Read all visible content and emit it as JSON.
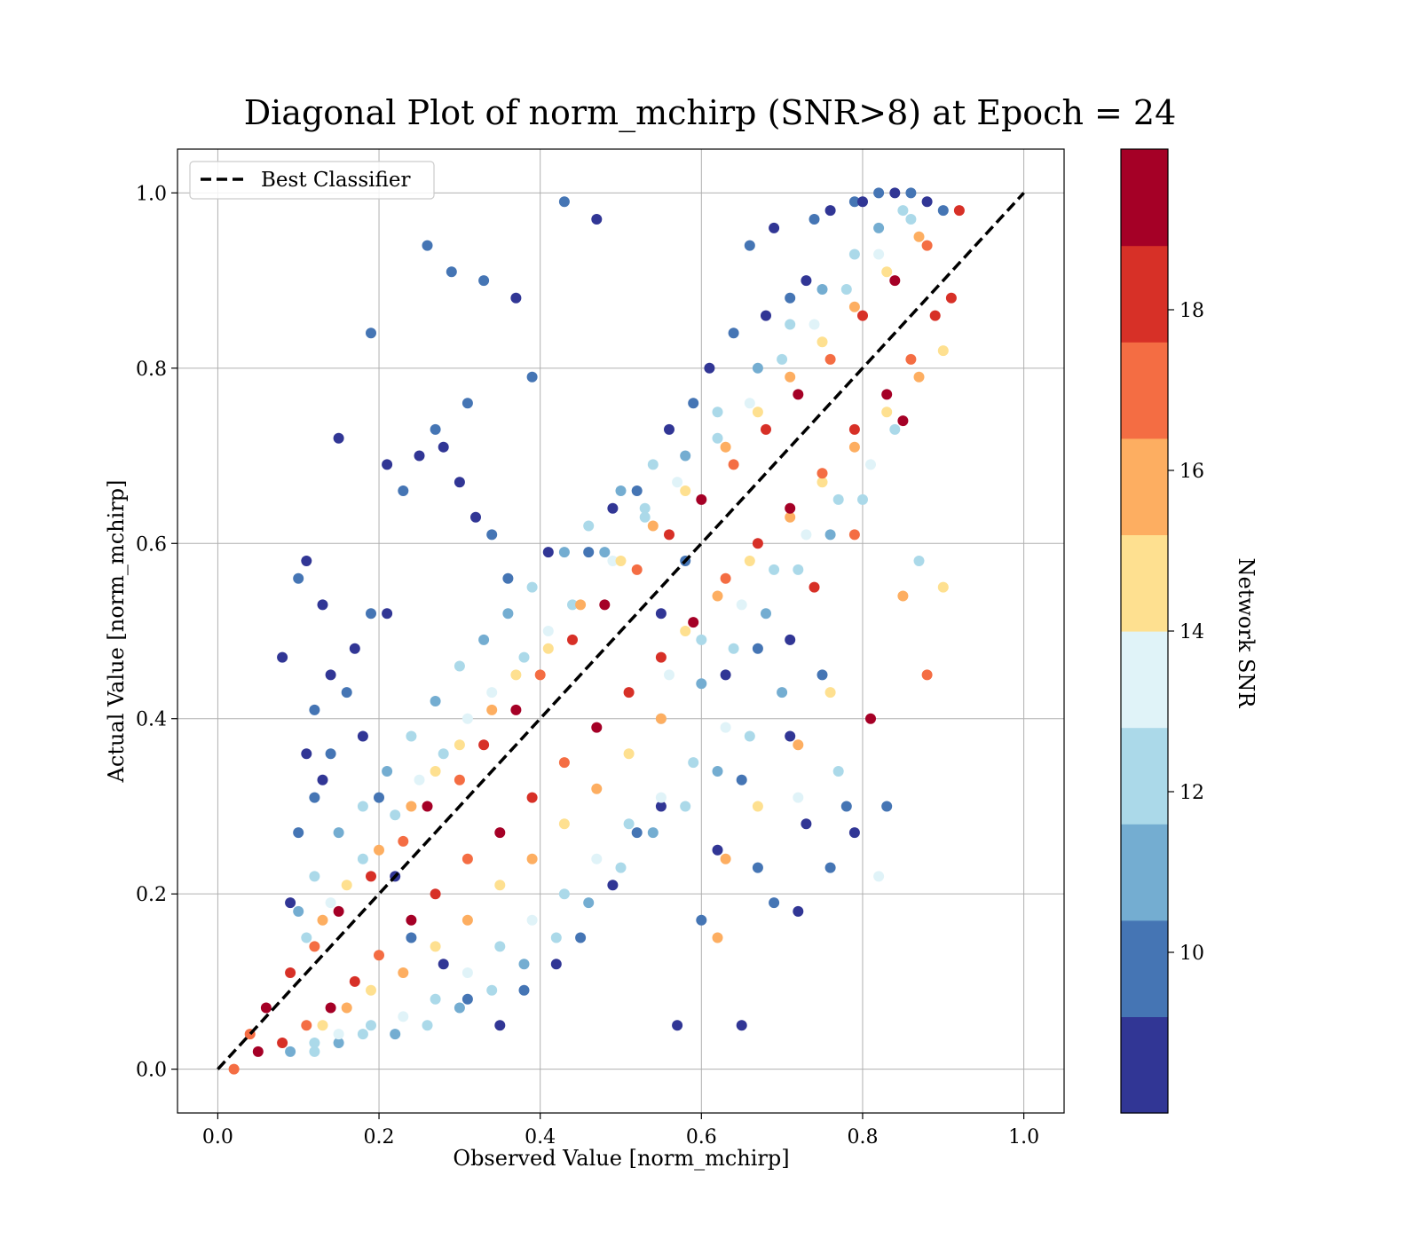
{
  "chart_data": {
    "type": "scatter",
    "title": "Diagonal Plot of norm_mchirp (SNR>8) at Epoch = 24",
    "xlabel": "Observed Value [norm_mchirp]",
    "ylabel": "Actual Value [norm_mchirp]",
    "xlim": [
      -0.05,
      1.05
    ],
    "ylim": [
      -0.05,
      1.05
    ],
    "x_ticks": [
      "0.0",
      "0.2",
      "0.4",
      "0.6",
      "0.8",
      "1.0"
    ],
    "y_ticks": [
      "0.0",
      "0.2",
      "0.4",
      "0.6",
      "0.8",
      "1.0"
    ],
    "grid": true,
    "legend": {
      "position": "upper-left",
      "entries": [
        "Best Classifier"
      ]
    },
    "reference_line": {
      "name": "Best Classifier",
      "x": [
        0.0,
        1.0
      ],
      "y": [
        0.0,
        1.0
      ],
      "style": "dashed",
      "color": "#000000"
    },
    "colorbar": {
      "label": "Network SNR",
      "range": [
        8,
        20
      ],
      "ticks": [
        "10",
        "12",
        "14",
        "16",
        "18"
      ],
      "tick_values": [
        10,
        12,
        14,
        16,
        18
      ],
      "colors": [
        "#313695",
        "#4575b4",
        "#74add1",
        "#abd9e9",
        "#e0f3f8",
        "#fee090",
        "#fdae61",
        "#f46d43",
        "#d73027",
        "#a50026"
      ]
    },
    "series": [
      {
        "snr_range": "8-10",
        "x": [
          0.15,
          0.19,
          0.11,
          0.29,
          0.21,
          0.33,
          0.37,
          0.43,
          0.47,
          0.26,
          0.28,
          0.31,
          0.08,
          0.1,
          0.13,
          0.46,
          0.49,
          0.52,
          0.56,
          0.59,
          0.61,
          0.64,
          0.68,
          0.71,
          0.73,
          0.66,
          0.69,
          0.74,
          0.76,
          0.79,
          0.8,
          0.82,
          0.84,
          0.86,
          0.88,
          0.9,
          0.57,
          0.6,
          0.65,
          0.69,
          0.72,
          0.76,
          0.79,
          0.83,
          0.62,
          0.67,
          0.73,
          0.78,
          0.55,
          0.52,
          0.49,
          0.45,
          0.42,
          0.38,
          0.35,
          0.31,
          0.28,
          0.24,
          0.22,
          0.2,
          0.18,
          0.16,
          0.14,
          0.12,
          0.11,
          0.39,
          0.41,
          0.36,
          0.32,
          0.34,
          0.3,
          0.27,
          0.25,
          0.23,
          0.17,
          0.19,
          0.21,
          0.14,
          0.13,
          0.12,
          0.09,
          0.1,
          0.55,
          0.58,
          0.63,
          0.67,
          0.71,
          0.75,
          0.71,
          0.65
        ],
        "y": [
          0.72,
          0.84,
          0.58,
          0.91,
          0.69,
          0.9,
          0.88,
          0.99,
          0.97,
          0.94,
          0.71,
          0.76,
          0.47,
          0.56,
          0.53,
          0.59,
          0.64,
          0.66,
          0.73,
          0.76,
          0.8,
          0.84,
          0.86,
          0.88,
          0.9,
          0.94,
          0.96,
          0.97,
          0.98,
          0.99,
          0.99,
          1.0,
          1.0,
          1.0,
          0.99,
          0.98,
          0.05,
          0.17,
          0.05,
          0.19,
          0.18,
          0.23,
          0.27,
          0.3,
          0.25,
          0.23,
          0.28,
          0.3,
          0.3,
          0.27,
          0.21,
          0.15,
          0.12,
          0.09,
          0.05,
          0.08,
          0.12,
          0.15,
          0.22,
          0.31,
          0.38,
          0.43,
          0.45,
          0.41,
          0.36,
          0.79,
          0.59,
          0.56,
          0.63,
          0.61,
          0.67,
          0.73,
          0.7,
          0.66,
          0.48,
          0.52,
          0.52,
          0.36,
          0.33,
          0.31,
          0.19,
          0.27,
          0.52,
          0.58,
          0.45,
          0.48,
          0.49,
          0.45,
          0.38,
          0.33
        ]
      },
      {
        "snr_range": "10-12",
        "x": [
          0.48,
          0.53,
          0.58,
          0.62,
          0.67,
          0.71,
          0.75,
          0.79,
          0.82,
          0.85,
          0.36,
          0.39,
          0.43,
          0.46,
          0.5,
          0.54,
          0.27,
          0.3,
          0.33,
          0.24,
          0.21,
          0.18,
          0.15,
          0.12,
          0.1,
          0.55,
          0.6,
          0.64,
          0.68,
          0.72,
          0.76,
          0.8,
          0.7,
          0.66,
          0.62,
          0.58,
          0.54,
          0.5,
          0.46,
          0.42,
          0.38,
          0.34,
          0.3,
          0.26,
          0.22,
          0.18,
          0.15,
          0.12,
          0.09
        ],
        "y": [
          0.59,
          0.64,
          0.7,
          0.75,
          0.8,
          0.85,
          0.89,
          0.93,
          0.96,
          0.98,
          0.52,
          0.55,
          0.59,
          0.62,
          0.66,
          0.69,
          0.42,
          0.46,
          0.49,
          0.38,
          0.34,
          0.3,
          0.27,
          0.22,
          0.18,
          0.4,
          0.44,
          0.48,
          0.52,
          0.57,
          0.61,
          0.65,
          0.43,
          0.38,
          0.34,
          0.3,
          0.27,
          0.23,
          0.19,
          0.15,
          0.12,
          0.09,
          0.07,
          0.05,
          0.04,
          0.04,
          0.03,
          0.02,
          0.02
        ]
      },
      {
        "snr_range": "12-14",
        "x": [
          0.44,
          0.49,
          0.53,
          0.57,
          0.62,
          0.66,
          0.7,
          0.74,
          0.78,
          0.82,
          0.86,
          0.34,
          0.38,
          0.41,
          0.28,
          0.31,
          0.22,
          0.25,
          0.18,
          0.14,
          0.11,
          0.56,
          0.6,
          0.65,
          0.69,
          0.73,
          0.77,
          0.81,
          0.84,
          0.63,
          0.59,
          0.55,
          0.51,
          0.47,
          0.43,
          0.39,
          0.35,
          0.31,
          0.27,
          0.23,
          0.19,
          0.15,
          0.12,
          0.72,
          0.77,
          0.82,
          0.87
        ],
        "y": [
          0.53,
          0.58,
          0.63,
          0.67,
          0.72,
          0.76,
          0.81,
          0.85,
          0.89,
          0.93,
          0.97,
          0.43,
          0.47,
          0.5,
          0.36,
          0.4,
          0.29,
          0.33,
          0.24,
          0.19,
          0.15,
          0.45,
          0.49,
          0.53,
          0.57,
          0.61,
          0.65,
          0.69,
          0.73,
          0.39,
          0.35,
          0.31,
          0.28,
          0.24,
          0.2,
          0.17,
          0.14,
          0.11,
          0.08,
          0.06,
          0.05,
          0.04,
          0.03,
          0.31,
          0.34,
          0.22,
          0.58
        ]
      },
      {
        "snr_range": "14-16",
        "x": [
          0.41,
          0.45,
          0.5,
          0.54,
          0.58,
          0.63,
          0.67,
          0.71,
          0.75,
          0.79,
          0.83,
          0.87,
          0.3,
          0.34,
          0.37,
          0.24,
          0.27,
          0.2,
          0.16,
          0.13,
          0.58,
          0.62,
          0.66,
          0.71,
          0.75,
          0.79,
          0.83,
          0.87,
          0.9,
          0.55,
          0.51,
          0.47,
          0.43,
          0.39,
          0.35,
          0.31,
          0.27,
          0.23,
          0.19,
          0.16,
          0.13,
          0.63,
          0.67,
          0.72,
          0.76,
          0.85,
          0.9,
          0.62
        ],
        "y": [
          0.48,
          0.53,
          0.58,
          0.62,
          0.66,
          0.71,
          0.75,
          0.79,
          0.83,
          0.87,
          0.91,
          0.95,
          0.37,
          0.41,
          0.45,
          0.3,
          0.34,
          0.25,
          0.21,
          0.17,
          0.5,
          0.54,
          0.58,
          0.63,
          0.67,
          0.71,
          0.75,
          0.79,
          0.82,
          0.4,
          0.36,
          0.32,
          0.28,
          0.24,
          0.21,
          0.17,
          0.14,
          0.11,
          0.09,
          0.07,
          0.05,
          0.24,
          0.3,
          0.37,
          0.43,
          0.54,
          0.55,
          0.15
        ]
      },
      {
        "snr_range": "16-20",
        "x": [
          0.3,
          0.33,
          0.37,
          0.4,
          0.44,
          0.48,
          0.52,
          0.56,
          0.6,
          0.64,
          0.68,
          0.72,
          0.76,
          0.8,
          0.84,
          0.88,
          0.92,
          0.26,
          0.23,
          0.19,
          0.15,
          0.12,
          0.09,
          0.06,
          0.04,
          0.55,
          0.59,
          0.63,
          0.67,
          0.71,
          0.75,
          0.79,
          0.83,
          0.86,
          0.51,
          0.47,
          0.43,
          0.39,
          0.35,
          0.31,
          0.27,
          0.24,
          0.2,
          0.17,
          0.14,
          0.11,
          0.08,
          0.05,
          0.02,
          0.89,
          0.85,
          0.88,
          0.91,
          0.81,
          0.79,
          0.74
        ],
        "y": [
          0.33,
          0.37,
          0.41,
          0.45,
          0.49,
          0.53,
          0.57,
          0.61,
          0.65,
          0.69,
          0.73,
          0.77,
          0.81,
          0.86,
          0.9,
          0.94,
          0.98,
          0.3,
          0.26,
          0.22,
          0.18,
          0.14,
          0.11,
          0.07,
          0.04,
          0.47,
          0.51,
          0.56,
          0.6,
          0.64,
          0.68,
          0.73,
          0.77,
          0.81,
          0.43,
          0.39,
          0.35,
          0.31,
          0.27,
          0.24,
          0.2,
          0.17,
          0.13,
          0.1,
          0.07,
          0.05,
          0.03,
          0.02,
          0.0,
          0.86,
          0.74,
          0.45,
          0.88,
          0.4,
          0.61,
          0.55
        ]
      }
    ]
  }
}
